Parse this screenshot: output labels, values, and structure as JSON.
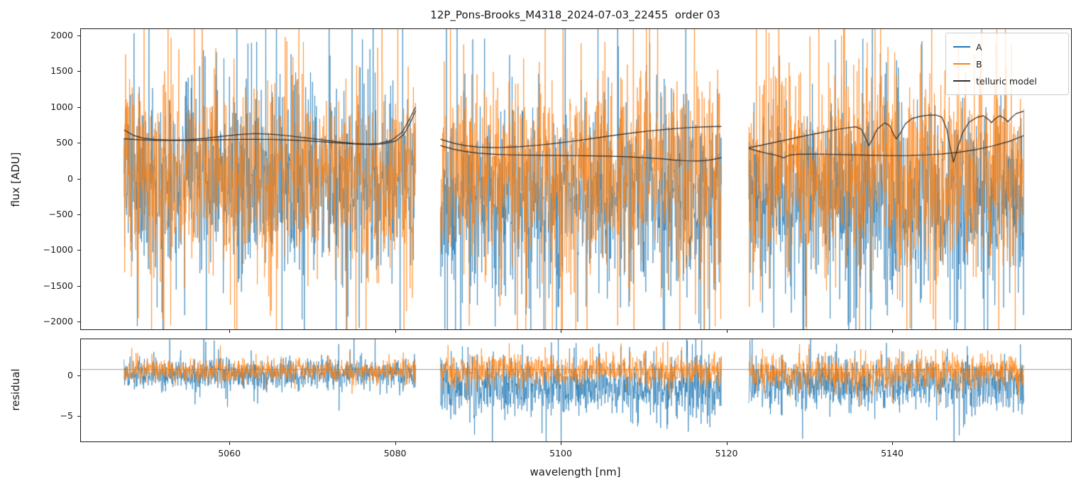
{
  "figure": {
    "title": "12P_Pons-Brooks_M4318_2024-07-03_22455  order 03",
    "xlabel": "wavelength [nm]"
  },
  "chart_data": [
    {
      "type": "line",
      "title": "12P_Pons-Brooks_M4318_2024-07-03_22455  order 03",
      "ylabel": "flux [ADU]",
      "xlabel": "",
      "xlim": [
        5042,
        5161.5
      ],
      "ylim": [
        -2100,
        2100
      ],
      "yticks": [
        2000,
        1500,
        1000,
        500,
        0,
        -500,
        -1000,
        -1500,
        -2000
      ],
      "xticks": [
        5060,
        5080,
        5100,
        5120,
        5140
      ],
      "show_xtick_labels": false,
      "grid": false,
      "legend": [
        "A",
        "B",
        "telluric model"
      ],
      "legend_position": "upper right",
      "segments": [
        [
          5047.2,
          5082.4
        ],
        [
          5085.4,
          5119.3
        ],
        [
          5122.6,
          5155.8
        ]
      ],
      "noise_series": [
        {
          "name": "A",
          "color": "#1f77b4",
          "alpha": 0.82,
          "sigma": [
            600,
            620,
            620
          ],
          "center": [
            -50,
            -250,
            -300
          ],
          "tail_prob": 0.14,
          "tail_scale": 2.3,
          "points_per_segment": 900
        },
        {
          "name": "B",
          "color": "#ff7f0e",
          "alpha": 0.82,
          "sigma": [
            620,
            630,
            640
          ],
          "center": [
            40,
            60,
            120
          ],
          "tail_prob": 0.14,
          "tail_scale": 2.3,
          "points_per_segment": 900
        }
      ],
      "model": {
        "name": "telluric model",
        "color": "#2d2d2d",
        "lines": [
          [
            [
              5047.2,
              690
            ],
            [
              5048.3,
              615
            ],
            [
              5049.5,
              575
            ],
            [
              5051,
              556
            ],
            [
              5053,
              548
            ],
            [
              5055,
              552
            ],
            [
              5057,
              572
            ],
            [
              5059,
              600
            ],
            [
              5061,
              625
            ],
            [
              5063,
              638
            ],
            [
              5065,
              630
            ],
            [
              5067,
              608
            ],
            [
              5069,
              580
            ],
            [
              5071,
              552
            ],
            [
              5073,
              522
            ],
            [
              5075,
              500
            ],
            [
              5076.5,
              490
            ],
            [
              5078,
              500
            ],
            [
              5079.5,
              545
            ],
            [
              5080.8,
              660
            ],
            [
              5081.6,
              830
            ],
            [
              5082.4,
              1010
            ]
          ],
          [
            [
              5047.2,
              565
            ],
            [
              5049,
              552
            ],
            [
              5051,
              545
            ],
            [
              5053,
              542
            ],
            [
              5055,
              543
            ],
            [
              5057,
              547
            ],
            [
              5059,
              552
            ],
            [
              5061,
              556
            ],
            [
              5063,
              558
            ],
            [
              5065,
              556
            ],
            [
              5067,
              550
            ],
            [
              5069,
              540
            ],
            [
              5071,
              525
            ],
            [
              5073,
              508
            ],
            [
              5075,
              492
            ],
            [
              5077,
              485
            ],
            [
              5078.5,
              495
            ],
            [
              5080,
              535
            ],
            [
              5081,
              630
            ],
            [
              5081.8,
              800
            ],
            [
              5082.4,
              960
            ]
          ],
          [
            [
              5085.4,
              560
            ],
            [
              5087,
              502
            ],
            [
              5088.5,
              468
            ],
            [
              5090,
              450
            ],
            [
              5091.5,
              444
            ],
            [
              5093,
              446
            ],
            [
              5095,
              456
            ],
            [
              5097,
              474
            ],
            [
              5099,
              498
            ],
            [
              5101,
              526
            ],
            [
              5103,
              558
            ],
            [
              5105,
              592
            ],
            [
              5107,
              624
            ],
            [
              5109,
              654
            ],
            [
              5111,
              680
            ],
            [
              5113,
              702
            ],
            [
              5115,
              720
            ],
            [
              5117,
              732
            ],
            [
              5118.3,
              736
            ],
            [
              5119.3,
              738
            ]
          ],
          [
            [
              5085.4,
              470
            ],
            [
              5087,
              418
            ],
            [
              5088.5,
              386
            ],
            [
              5090,
              364
            ],
            [
              5092,
              348
            ],
            [
              5094,
              340
            ],
            [
              5096,
              336
            ],
            [
              5098,
              334
            ],
            [
              5100,
              332
            ],
            [
              5102,
              330
            ],
            [
              5104,
              327
            ],
            [
              5106,
              322
            ],
            [
              5108,
              314
            ],
            [
              5110,
              302
            ],
            [
              5112,
              286
            ],
            [
              5113.5,
              270
            ],
            [
              5115,
              258
            ],
            [
              5116.2,
              255
            ],
            [
              5117.4,
              262
            ],
            [
              5118.4,
              280
            ],
            [
              5119.3,
              302
            ]
          ],
          [
            [
              5122.6,
              440
            ],
            [
              5124,
              472
            ],
            [
              5126,
              522
            ],
            [
              5128,
              572
            ],
            [
              5130,
              622
            ],
            [
              5132,
              666
            ],
            [
              5133.5,
              700
            ],
            [
              5134.5,
              720
            ],
            [
              5135.5,
              734
            ],
            [
              5136.2,
              700
            ],
            [
              5136.7,
              570
            ],
            [
              5137.1,
              470
            ],
            [
              5137.5,
              555
            ],
            [
              5138.1,
              700
            ],
            [
              5139,
              788
            ],
            [
              5139.6,
              752
            ],
            [
              5140,
              645
            ],
            [
              5140.4,
              565
            ],
            [
              5140.9,
              645
            ],
            [
              5141.5,
              775
            ],
            [
              5142.3,
              848
            ],
            [
              5143.2,
              878
            ],
            [
              5144.2,
              894
            ],
            [
              5145.2,
              898
            ],
            [
              5145.9,
              868
            ],
            [
              5146.5,
              700
            ],
            [
              5146.9,
              455
            ],
            [
              5147.3,
              240
            ],
            [
              5147.8,
              430
            ],
            [
              5148.4,
              648
            ],
            [
              5149.2,
              800
            ],
            [
              5150.2,
              868
            ],
            [
              5150.9,
              888
            ],
            [
              5151.5,
              840
            ],
            [
              5151.9,
              792
            ],
            [
              5152.3,
              842
            ],
            [
              5152.9,
              888
            ],
            [
              5153.5,
              848
            ],
            [
              5153.9,
              802
            ],
            [
              5154.3,
              860
            ],
            [
              5154.9,
              920
            ],
            [
              5155.8,
              952
            ]
          ],
          [
            [
              5122.6,
              430
            ],
            [
              5123.6,
              396
            ],
            [
              5124.8,
              362
            ],
            [
              5125.8,
              338
            ],
            [
              5126.4,
              318
            ],
            [
              5126.8,
              298
            ],
            [
              5127.1,
              318
            ],
            [
              5127.6,
              338
            ],
            [
              5128.5,
              348
            ],
            [
              5130,
              352
            ],
            [
              5132,
              350
            ],
            [
              5134,
              344
            ],
            [
              5136,
              338
            ],
            [
              5138,
              333
            ],
            [
              5140,
              330
            ],
            [
              5142,
              332
            ],
            [
              5144,
              340
            ],
            [
              5146,
              354
            ],
            [
              5148,
              378
            ],
            [
              5150,
              414
            ],
            [
              5152,
              464
            ],
            [
              5154,
              528
            ],
            [
              5155.8,
              610
            ]
          ]
        ]
      }
    },
    {
      "type": "line",
      "title": "",
      "ylabel": "residual",
      "xlabel": "wavelength [nm]",
      "xlim": [
        5042,
        5161.5
      ],
      "ylim": [
        -8,
        4.5
      ],
      "yticks": [
        0,
        -5
      ],
      "xticks": [
        5060,
        5080,
        5100,
        5120,
        5140
      ],
      "show_xtick_labels": true,
      "grid": false,
      "hline": 0.8,
      "hline_color": "#9a9a9a",
      "segments": [
        [
          5047.2,
          5082.4
        ],
        [
          5085.4,
          5119.3
        ],
        [
          5122.6,
          5155.8
        ]
      ],
      "noise_series": [
        {
          "name": "A",
          "color": "#1f77b4",
          "alpha": 0.85,
          "sigma": [
            0.9,
            1.7,
            1.5
          ],
          "center": [
            0.2,
            -1.3,
            -1.0
          ],
          "tail_prob": 0.12,
          "tail_scale": 2.0,
          "points_per_segment": 900
        },
        {
          "name": "B",
          "color": "#ff7f0e",
          "alpha": 0.85,
          "sigma": [
            0.7,
            0.9,
            1.0
          ],
          "center": [
            0.6,
            0.6,
            0.4
          ],
          "tail_prob": 0.1,
          "tail_scale": 1.8,
          "points_per_segment": 900
        }
      ]
    }
  ]
}
